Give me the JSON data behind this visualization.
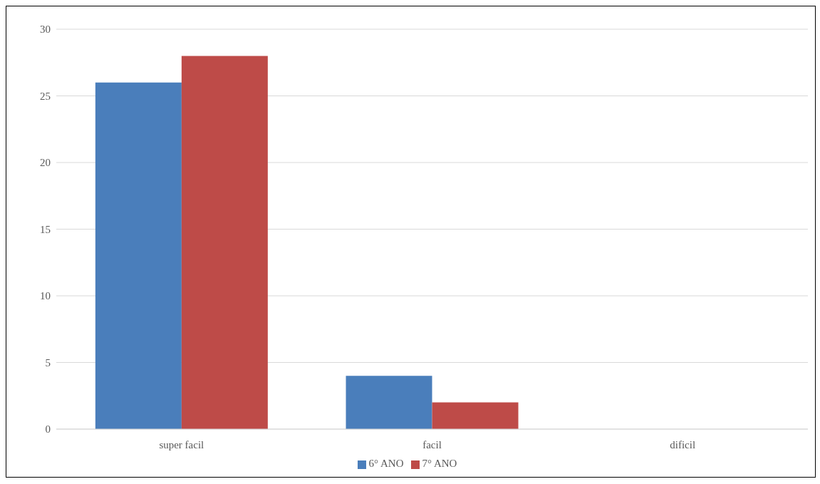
{
  "chart_data": {
    "type": "bar",
    "categories": [
      "super facil",
      "facil",
      "dificil"
    ],
    "series": [
      {
        "name": "6° ANO",
        "color": "#4a7ebb",
        "values": [
          26,
          4,
          0
        ]
      },
      {
        "name": "7° ANO",
        "color": "#be4b48",
        "values": [
          28,
          2,
          0
        ]
      }
    ],
    "ylim": [
      0,
      30
    ],
    "yticks": [
      0,
      5,
      10,
      15,
      20,
      25,
      30
    ],
    "grid": "y",
    "legend": "bottom"
  }
}
